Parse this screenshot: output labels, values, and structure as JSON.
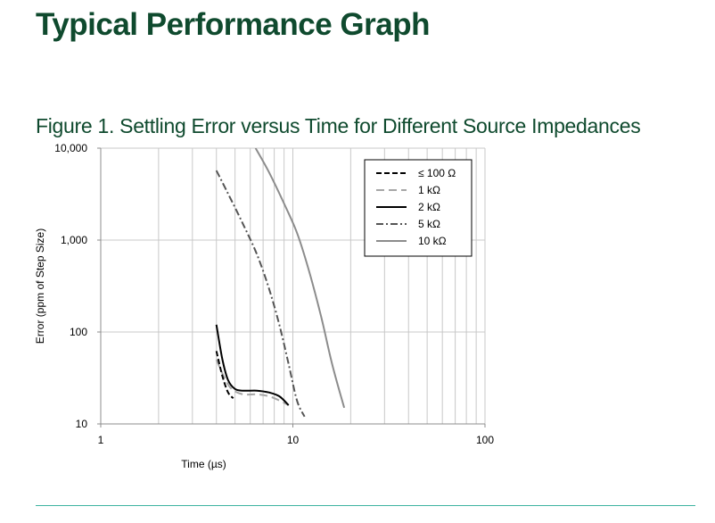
{
  "header": {
    "title": "Typical Performance Graph",
    "figure_title": "Figure 1. Settling Error versus Time for Different Source Impedances"
  },
  "colors": {
    "title": "#0f4a2e",
    "rule": "#3fb3a1"
  },
  "chart_data": {
    "type": "line",
    "title": "Figure 1. Settling Error versus Time for Different Source Impedances",
    "xlabel": "Time (µs)",
    "ylabel": "Error (ppm of Step Size)",
    "x_scale": "log",
    "y_scale": "log",
    "xlim": [
      1,
      100
    ],
    "ylim": [
      10,
      10000
    ],
    "x_ticks": [
      "1",
      "10",
      "100"
    ],
    "y_ticks": [
      "10",
      "100",
      "1,000",
      "10,000"
    ],
    "grid": true,
    "legend_position": "top-right",
    "series": [
      {
        "name": "≤ 100 Ω",
        "style": "dashed",
        "color": "#000000",
        "x": [
          4.0,
          4.3,
          4.6,
          4.9
        ],
        "y": [
          62,
          33,
          22,
          19
        ]
      },
      {
        "name": "1 kΩ",
        "style": "long-dashed",
        "color": "#a6a6a6",
        "x": [
          4.0,
          4.4,
          4.8,
          5.5,
          6.5,
          7.5,
          8.5,
          9.5
        ],
        "y": [
          50,
          32,
          24,
          21,
          21,
          20,
          18,
          16
        ]
      },
      {
        "name": "2 kΩ",
        "style": "solid",
        "color": "#000000",
        "x": [
          4.0,
          4.3,
          4.6,
          5.0,
          5.5,
          6.5,
          7.5,
          8.5,
          9.5
        ],
        "y": [
          120,
          50,
          30,
          24,
          23,
          23,
          22,
          20,
          16
        ]
      },
      {
        "name": "5 kΩ",
        "style": "dash-dot",
        "color": "#555555",
        "x": [
          4.0,
          4.6,
          5.5,
          6.5,
          7.5,
          8.5,
          9.5,
          10.5,
          11.5
        ],
        "y": [
          5700,
          3200,
          1500,
          700,
          300,
          120,
          45,
          18,
          12
        ]
      },
      {
        "name": "10 kΩ",
        "style": "solid",
        "color": "#8c8c8c",
        "x": [
          6.4,
          7.5,
          9.0,
          10.5,
          12.0,
          14.0,
          16.0,
          18.5
        ],
        "y": [
          10000,
          5500,
          2500,
          1200,
          500,
          150,
          45,
          15
        ]
      }
    ]
  }
}
